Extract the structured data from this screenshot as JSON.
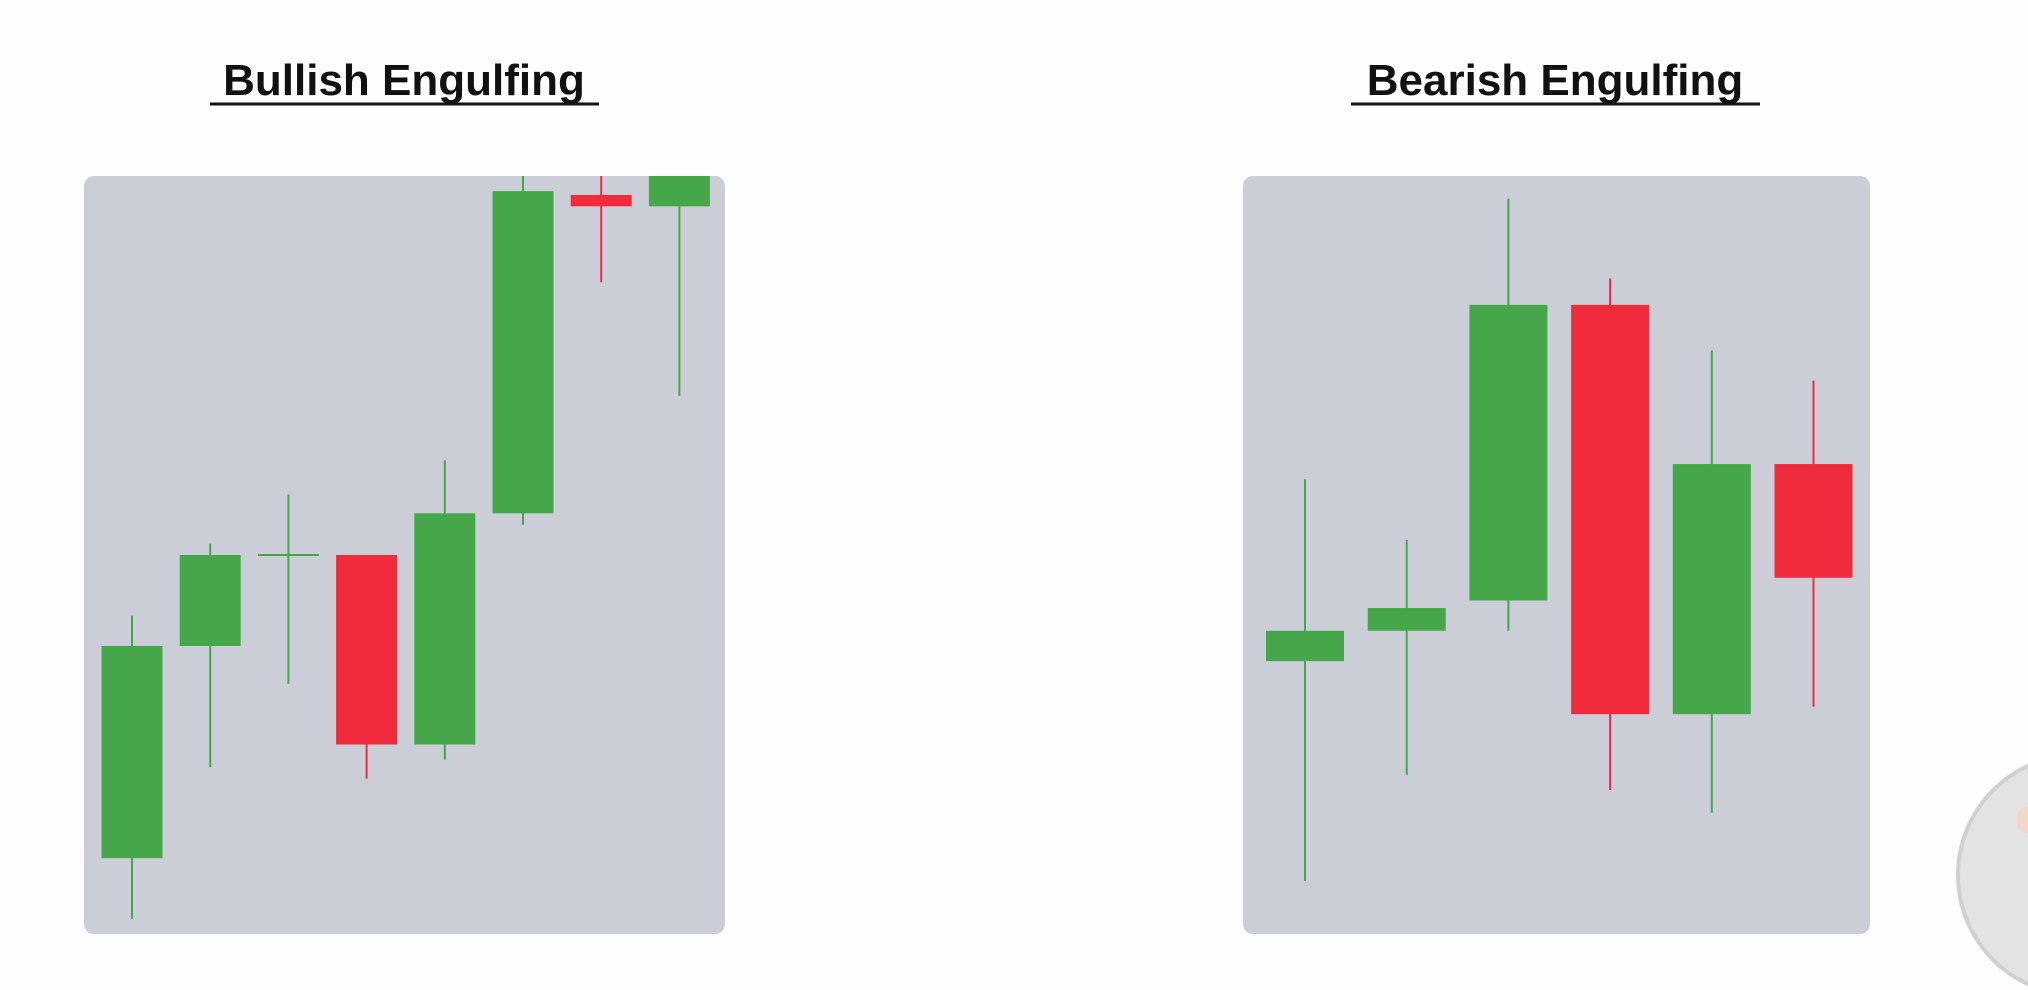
{
  "chart_data": [
    {
      "type": "candlestick",
      "title": "Bullish Engulfing",
      "ylim": [
        0,
        100
      ],
      "candles": [
        {
          "open": 10,
          "close": 38,
          "high": 42,
          "low": 2
        },
        {
          "open": 38,
          "close": 50,
          "high": 51.5,
          "low": 22
        },
        {
          "open": 50,
          "close": 50,
          "high": 58,
          "low": 33
        },
        {
          "open": 50,
          "close": 25,
          "high": 50,
          "low": 20.5
        },
        {
          "open": 25,
          "close": 55.5,
          "high": 62.5,
          "low": 23
        },
        {
          "open": 55.5,
          "close": 98,
          "high": 100,
          "low": 54
        },
        {
          "open": 97.5,
          "close": 96,
          "high": 100,
          "low": 86
        },
        {
          "open": 96,
          "close": 100,
          "high": 100,
          "low": 71
        }
      ]
    },
    {
      "type": "candlestick",
      "title": "Bearish Engulfing",
      "ylim": [
        0,
        100
      ],
      "candles": [
        {
          "open": 36,
          "close": 40,
          "high": 60,
          "low": 7
        },
        {
          "open": 40,
          "close": 43,
          "high": 52,
          "low": 21
        },
        {
          "open": 44,
          "close": 83,
          "high": 97,
          "low": 40
        },
        {
          "open": 83,
          "close": 29,
          "high": 86.5,
          "low": 19
        },
        {
          "open": 29,
          "close": 62,
          "high": 77,
          "low": 16
        },
        {
          "open": 62,
          "close": 47,
          "high": 73,
          "low": 30
        }
      ]
    }
  ],
  "colors": {
    "bullish": "#45a64a",
    "bearish": "#ef2b3c",
    "panel": "#cbced6",
    "background": "#fefefe",
    "title": "#111111"
  }
}
